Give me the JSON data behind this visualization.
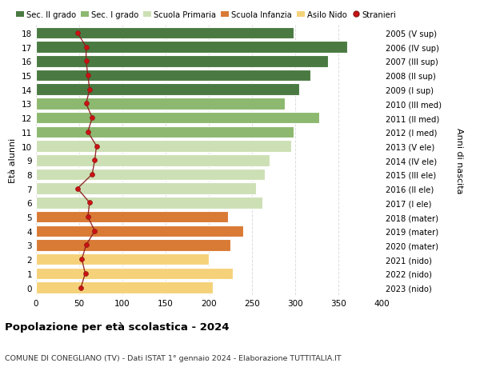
{
  "ages": [
    0,
    1,
    2,
    3,
    4,
    5,
    6,
    7,
    8,
    9,
    10,
    11,
    12,
    13,
    14,
    15,
    16,
    17,
    18
  ],
  "bar_values": [
    205,
    228,
    200,
    225,
    240,
    222,
    262,
    255,
    265,
    270,
    295,
    298,
    328,
    288,
    305,
    318,
    338,
    360,
    298
  ],
  "bar_colors": [
    "#f5d27a",
    "#f5d27a",
    "#f5d27a",
    "#d97a35",
    "#d97a35",
    "#d97a35",
    "#cde0b5",
    "#cde0b5",
    "#cde0b5",
    "#cde0b5",
    "#cde0b5",
    "#8db870",
    "#8db870",
    "#8db870",
    "#4a7a42",
    "#4a7a42",
    "#4a7a42",
    "#4a7a42",
    "#4a7a42"
  ],
  "stranieri_values": [
    52,
    57,
    53,
    58,
    68,
    60,
    62,
    48,
    65,
    68,
    70,
    60,
    65,
    58,
    62,
    60,
    58,
    58,
    48
  ],
  "right_labels": [
    "2023 (nido)",
    "2022 (nido)",
    "2021 (nido)",
    "2020 (mater)",
    "2019 (mater)",
    "2018 (mater)",
    "2017 (I ele)",
    "2016 (II ele)",
    "2015 (III ele)",
    "2014 (IV ele)",
    "2013 (V ele)",
    "2012 (I med)",
    "2011 (II med)",
    "2010 (III med)",
    "2009 (I sup)",
    "2008 (II sup)",
    "2007 (III sup)",
    "2006 (IV sup)",
    "2005 (V sup)"
  ],
  "legend_labels": [
    "Sec. II grado",
    "Sec. I grado",
    "Scuola Primaria",
    "Scuola Infanzia",
    "Asilo Nido",
    "Stranieri"
  ],
  "legend_colors": [
    "#4a7a42",
    "#8db870",
    "#cde0b5",
    "#d97a35",
    "#f5d27a",
    "#cc0000"
  ],
  "ylabel_left": "Età alunni",
  "ylabel_right": "Anni di nascita",
  "title": "Popolazione per età scolastica - 2024",
  "subtitle": "COMUNE DI CONEGLIANO (TV) - Dati ISTAT 1° gennaio 2024 - Elaborazione TUTTITALIA.IT",
  "xlim": [
    0,
    400
  ],
  "xticks": [
    0,
    50,
    100,
    150,
    200,
    250,
    300,
    350,
    400
  ],
  "background_color": "#ffffff",
  "bar_height": 0.82,
  "grid_color": "#dddddd",
  "stranieri_line_color": "#8b1a1a",
  "stranieri_dot_color": "#cc1111"
}
